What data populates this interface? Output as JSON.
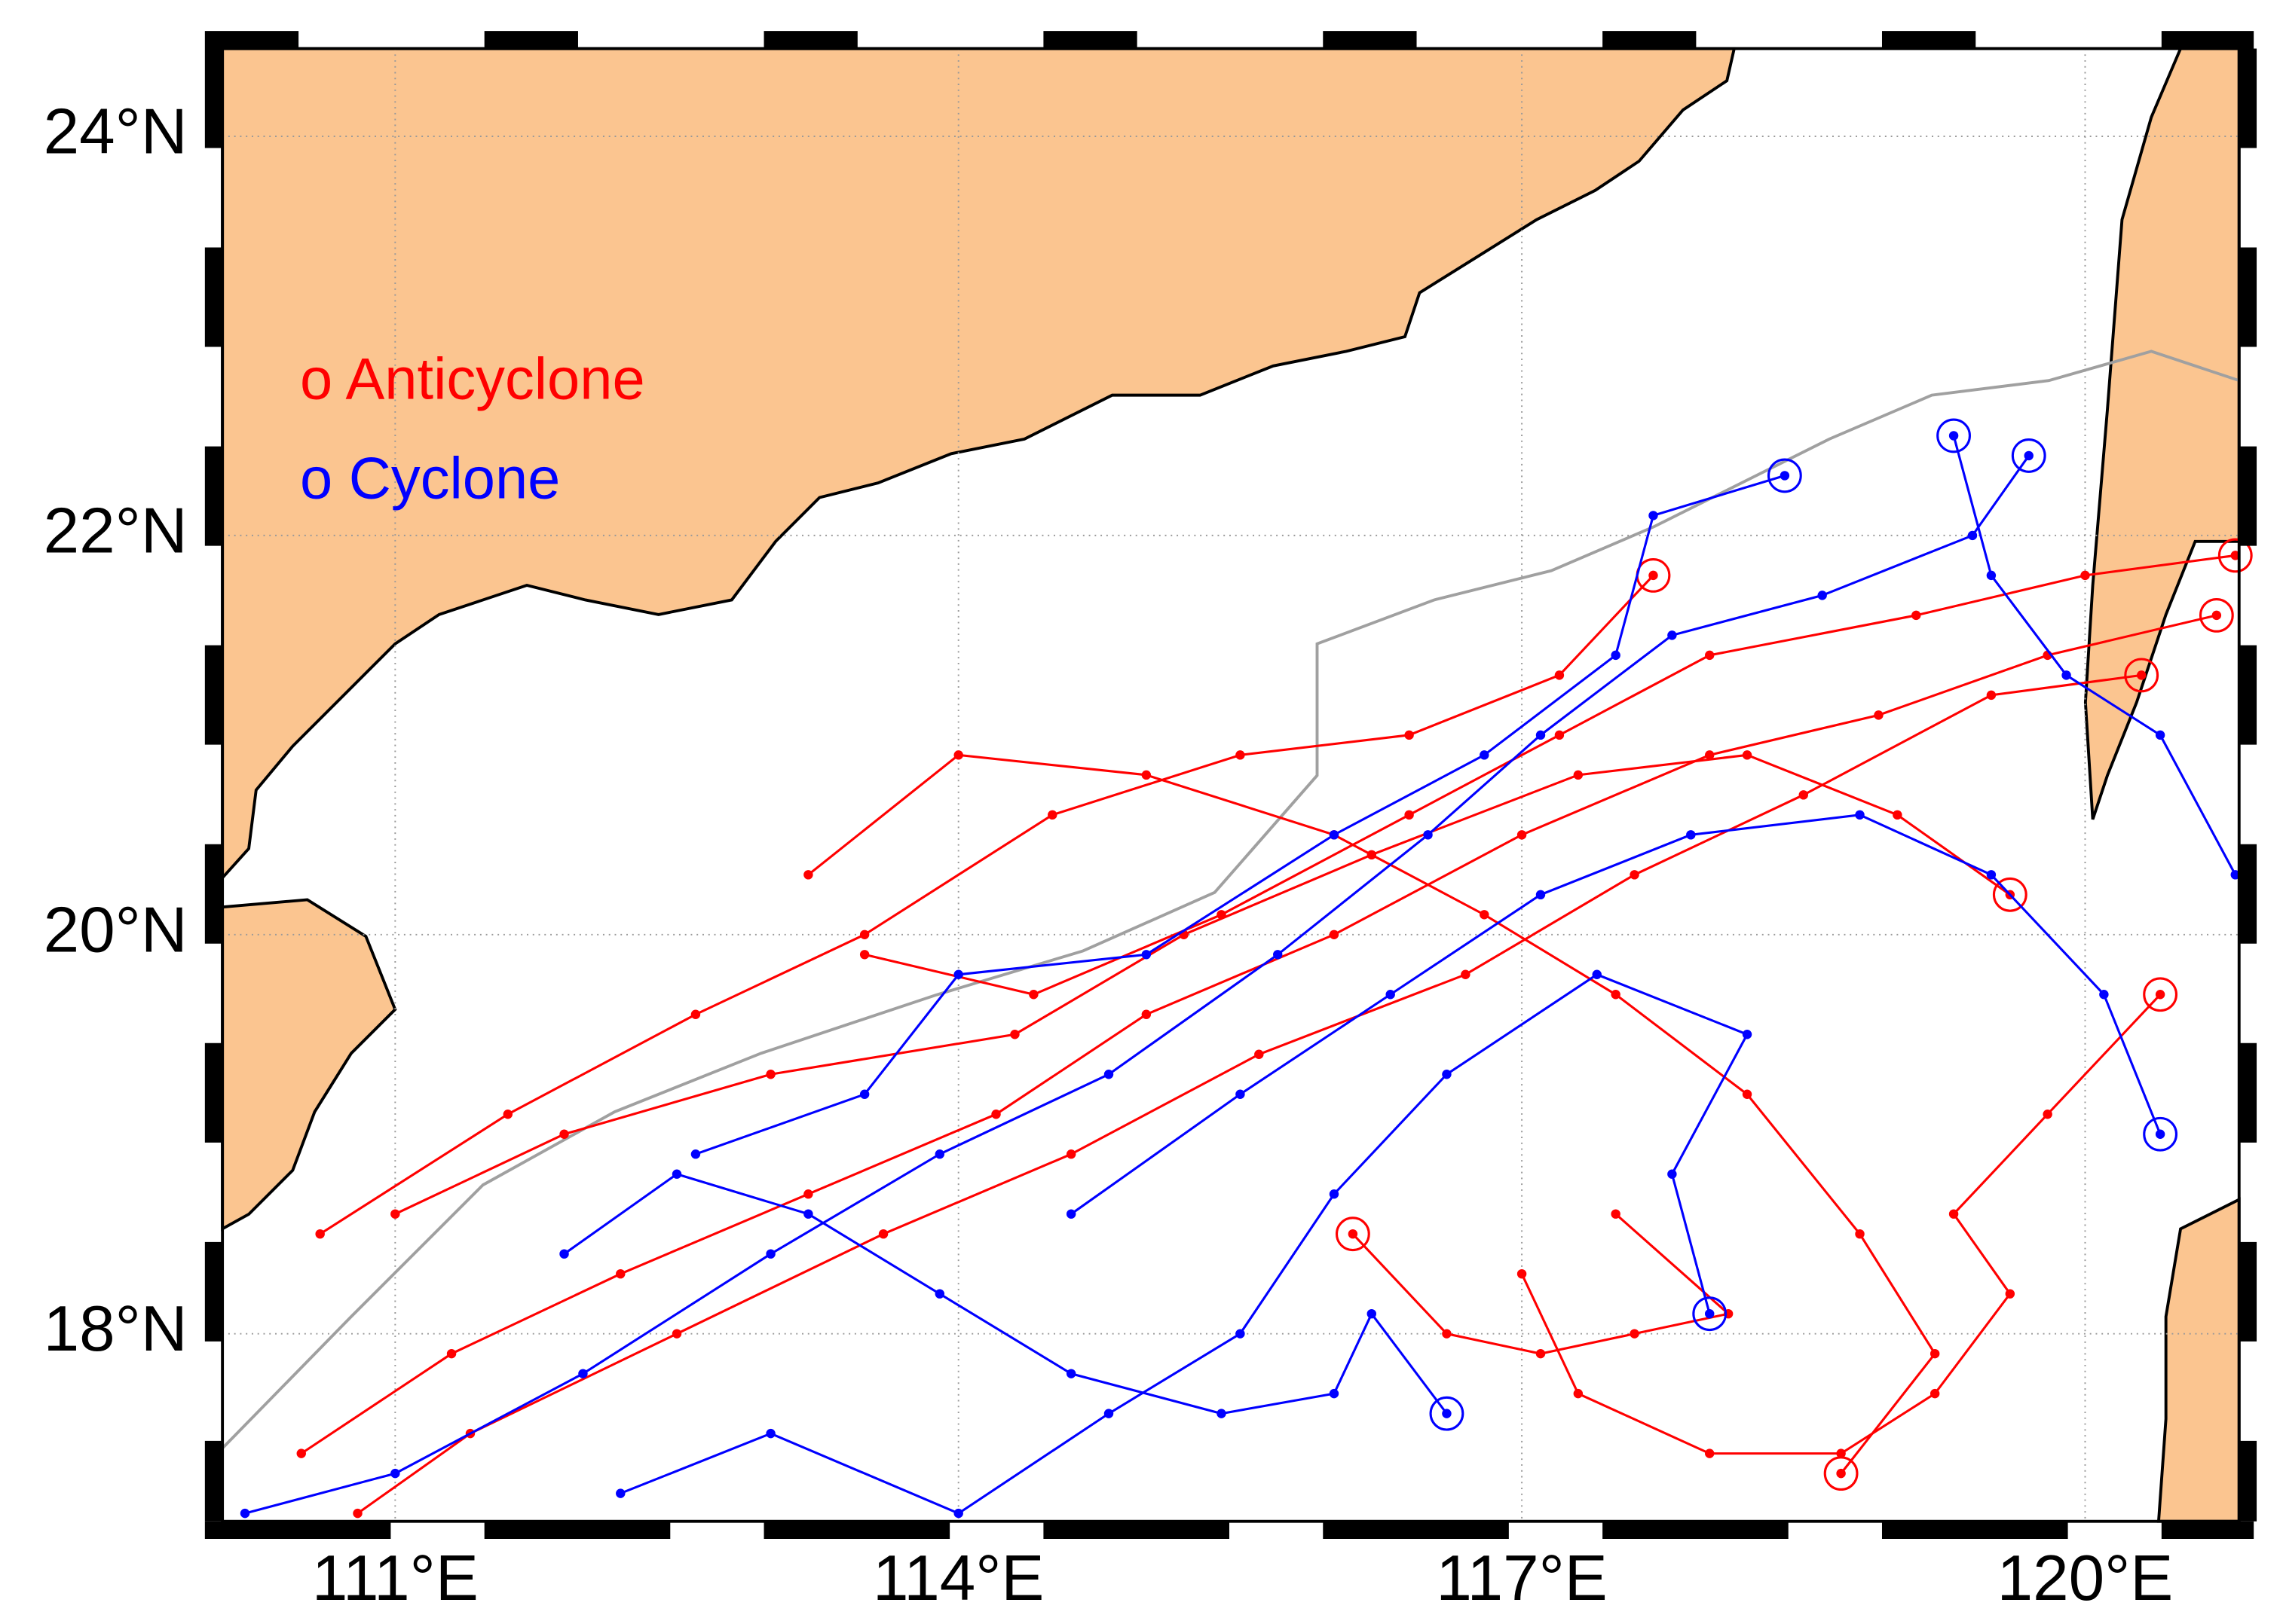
{
  "chart_data": {
    "type": "track-map",
    "xlim": [
      110.08,
      120.82
    ],
    "ylim": [
      17.06,
      24.44
    ],
    "xticks": [
      {
        "value": 111,
        "label": "111°E"
      },
      {
        "value": 114,
        "label": "114°E"
      },
      {
        "value": 117,
        "label": "117°E"
      },
      {
        "value": 120,
        "label": "120°E"
      }
    ],
    "yticks": [
      {
        "value": 18,
        "label": "18°N"
      },
      {
        "value": 20,
        "label": "20°N"
      },
      {
        "value": 22,
        "label": "22°N"
      },
      {
        "value": 24,
        "label": "24°N"
      }
    ],
    "grid": true,
    "series": [
      {
        "name": "o Anticyclone",
        "color": "#ff0000",
        "x": [
          120.7,
          119.8,
          118.9,
          118.0,
          117.0,
          116.0,
          115.0,
          114.2,
          113.2,
          112.2,
          111.3,
          110.5,
          null,
          120.3,
          119.5,
          118.5,
          117.6,
          116.7,
          115.6,
          114.6,
          113.6,
          112.5,
          111.4,
          110.8,
          null,
          119.6,
          119.0,
          118.2,
          117.3,
          116.2,
          115.2,
          114.3,
          113.0,
          111.9,
          111.0,
          null,
          120.4,
          119.8,
          119.3,
          119.6,
          119.2,
          118.7,
          118.0,
          117.3,
          117.0,
          null,
          118.7,
          119.2,
          118.8,
          118.2,
          117.5,
          116.8,
          116.0,
          115.0,
          114.0,
          113.2,
          null,
          117.7,
          117.2,
          116.4,
          115.5,
          114.5,
          113.5,
          112.6,
          111.6,
          110.6,
          null,
          116.1,
          116.6,
          117.1,
          117.6,
          118.1,
          117.5,
          null,
          120.8,
          120.0,
          119.1,
          118.0,
          117.2,
          116.4,
          115.4,
          114.4,
          113.5
        ],
        "values": [
          21.6,
          21.4,
          21.1,
          20.9,
          20.5,
          20.0,
          19.6,
          19.1,
          18.7,
          18.3,
          17.9,
          17.4,
          null,
          21.3,
          21.2,
          20.7,
          20.3,
          19.8,
          19.4,
          18.9,
          18.5,
          18.0,
          17.5,
          17.1,
          null,
          20.2,
          20.6,
          20.9,
          20.8,
          20.4,
          20.0,
          19.5,
          19.3,
          19.0,
          18.6,
          null,
          19.7,
          19.1,
          18.6,
          18.2,
          17.7,
          17.4,
          17.4,
          17.7,
          18.3,
          null,
          17.3,
          17.9,
          18.5,
          19.2,
          19.7,
          20.1,
          20.5,
          20.8,
          20.9,
          20.3,
          null,
          21.8,
          21.3,
          21.0,
          20.9,
          20.6,
          20.0,
          19.6,
          19.1,
          18.5,
          null,
          18.5,
          18.0,
          17.9,
          18.0,
          18.1,
          18.6,
          null,
          21.9,
          21.8,
          21.6,
          21.4,
          21.0,
          20.6,
          20.1,
          19.7,
          19.9
        ]
      },
      {
        "name": "o Cyclone",
        "color": "#0000ff",
        "x": [
          119.7,
          119.4,
          118.6,
          117.8,
          117.1,
          116.5,
          115.7,
          114.8,
          113.9,
          113.0,
          112.0,
          111.0,
          110.2,
          null,
          118.4,
          117.7,
          117.5,
          116.8,
          116.0,
          115.0,
          114.0,
          113.5,
          112.6,
          null,
          120.4,
          120.1,
          119.5,
          118.8,
          117.9,
          117.1,
          116.3,
          115.5,
          114.6,
          null,
          118.0,
          117.8,
          118.2,
          117.4,
          116.6,
          116.0,
          115.5,
          114.8,
          114.0,
          113.0,
          112.2,
          null,
          116.6,
          116.2,
          116.0,
          115.4,
          114.6,
          113.9,
          113.2,
          112.5,
          111.9,
          null,
          119.3,
          119.5,
          119.9,
          120.4,
          120.8
        ],
        "values": [
          22.4,
          22.0,
          21.7,
          21.5,
          21.0,
          20.5,
          19.9,
          19.3,
          18.9,
          18.4,
          17.8,
          17.3,
          17.1,
          null,
          22.3,
          22.1,
          21.4,
          20.9,
          20.5,
          19.9,
          19.8,
          19.2,
          18.9,
          null,
          19.0,
          19.7,
          20.3,
          20.6,
          20.5,
          20.2,
          19.7,
          19.2,
          18.6,
          null,
          18.1,
          18.8,
          19.5,
          19.8,
          19.3,
          18.7,
          18.0,
          17.6,
          17.1,
          17.5,
          17.2,
          null,
          17.6,
          18.1,
          17.7,
          17.6,
          17.8,
          18.2,
          18.6,
          18.8,
          18.4,
          null,
          22.5,
          21.8,
          21.3,
          21.0,
          20.3
        ]
      }
    ]
  }
}
